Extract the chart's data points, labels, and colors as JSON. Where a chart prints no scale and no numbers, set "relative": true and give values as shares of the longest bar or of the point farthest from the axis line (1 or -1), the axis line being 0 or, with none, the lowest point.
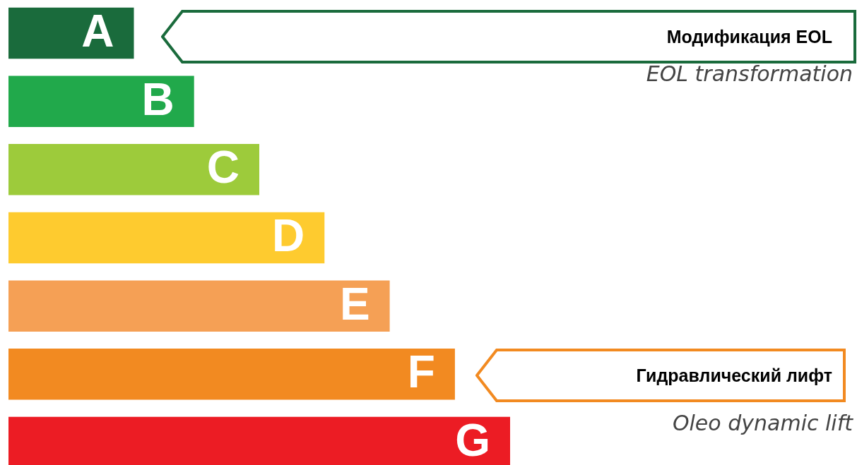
{
  "chart_data": {
    "type": "bar",
    "orientation": "horizontal",
    "relative": true,
    "categories": [
      "A",
      "B",
      "C",
      "D",
      "E",
      "F",
      "G"
    ],
    "values": [
      0.25,
      0.37,
      0.5,
      0.63,
      0.76,
      0.89,
      1
    ],
    "colors": [
      "#1a6b3c",
      "#21a94b",
      "#9dcb3b",
      "#fecb2f",
      "#f5a055",
      "#f28a21",
      "#ec1c24"
    ],
    "annotations": [
      "Модификация EOL",
      "EOL transformation",
      "Гидравлический лифт",
      "Oleo dynamic lift"
    ]
  }
}
